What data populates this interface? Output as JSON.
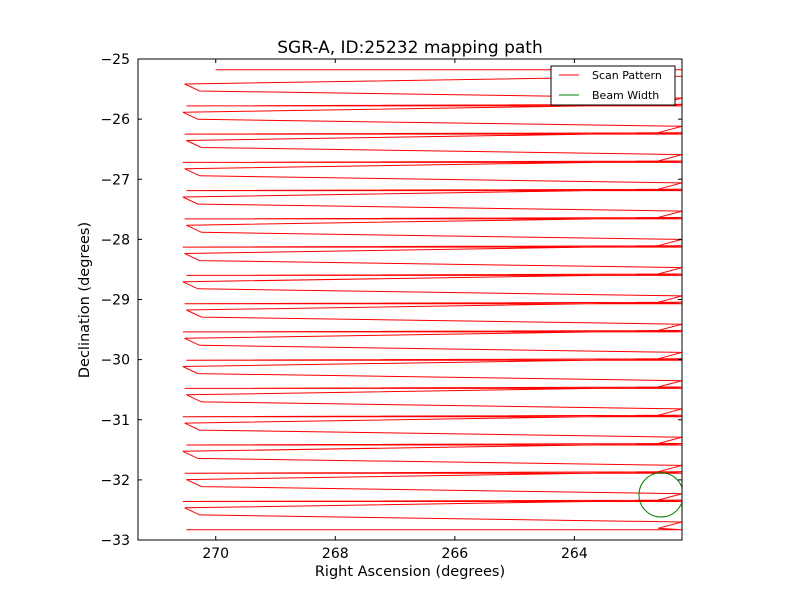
{
  "chart_data": {
    "type": "line",
    "title": "SGR-A, ID:25232 mapping path",
    "xlabel": "Right Ascension (degrees)",
    "ylabel": "Declination (degrees)",
    "xlim": [
      271.3,
      262.2
    ],
    "ylim": [
      -33,
      -25
    ],
    "x_ticks": [
      270,
      268,
      266,
      264
    ],
    "y_ticks": [
      -25,
      -26,
      -27,
      -28,
      -29,
      -30,
      -31,
      -32,
      -33
    ],
    "x_tick_labels": [
      "270",
      "268",
      "266",
      "264"
    ],
    "y_tick_labels": [
      "−25",
      "−26",
      "−27",
      "−28",
      "−29",
      "−30",
      "−31",
      "−32",
      "−33"
    ],
    "grid": false,
    "legend_position": "top-right",
    "series": [
      {
        "name": "Scan Pattern",
        "color": "#ff0000",
        "kind": "raster_scan",
        "ra_east": 270.55,
        "ra_west": 262.2,
        "dec_start": -25.18,
        "dec_end": -32.7,
        "row_count": 33
      },
      {
        "name": "Beam Width",
        "color": "#008000",
        "kind": "circle",
        "center_ra": 262.55,
        "center_dec": -32.25,
        "radius_deg": 0.37
      }
    ]
  }
}
